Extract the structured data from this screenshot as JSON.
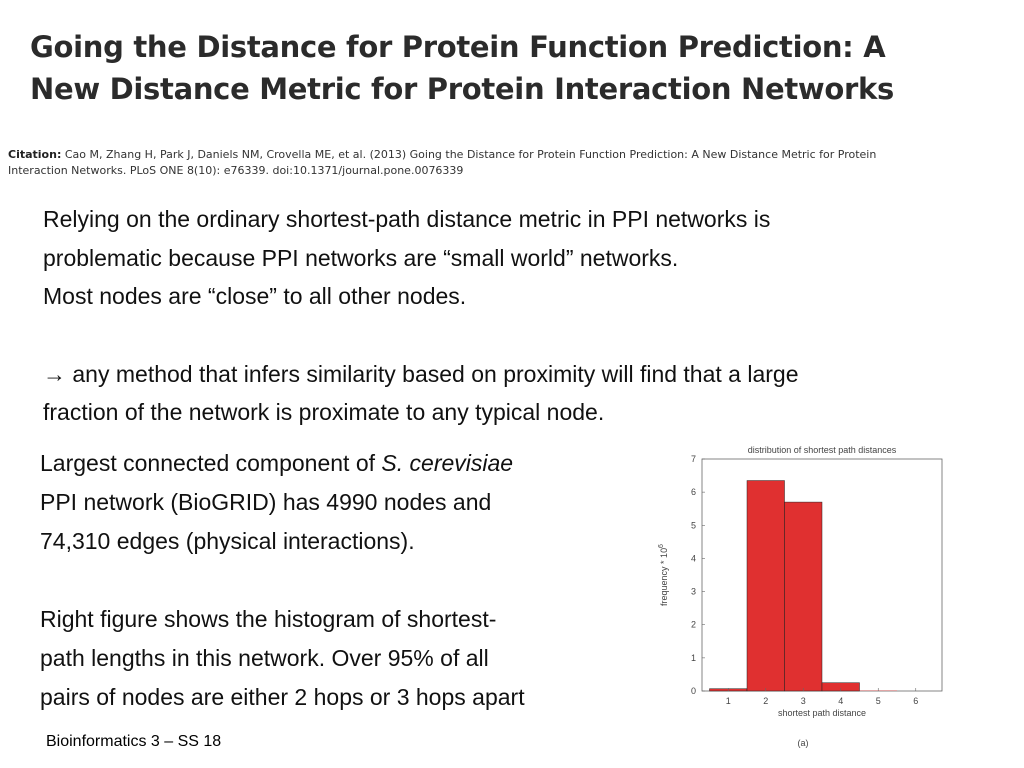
{
  "slide": {
    "title_lines": [
      "Going the Distance for Protein Function Prediction: A",
      "New Distance Metric for Protein Interaction Networks"
    ],
    "citation_label": "Citation:",
    "citation_line1": "Cao M, Zhang H, Park J, Daniels NM, Crovella ME, et al. (2013) Going the Distance for Protein Function Prediction: A New Distance Metric for Protein",
    "citation_line2": "Interaction Networks. PLoS ONE 8(10): e76339. doi:10.1371/journal.pone.0076339",
    "paragraph1": [
      "Relying on the ordinary shortest-path distance metric in PPI networks is",
      "problematic because PPI networks are “small world” networks.",
      "Most nodes are “close” to all other nodes."
    ],
    "arrow_symbol": "→",
    "paragraph2": [
      " any method that infers similarity based on proximity will find that a large",
      "fraction of the network is proximate to any typical node."
    ],
    "left_block_1": {
      "line1_prefix": "Largest connected component of ",
      "line1_species": "S. cerevisiae",
      "line2": "PPI network (BioGRID) has 4990 nodes and",
      "line3": "74,310 edges (physical interactions)."
    },
    "left_block_2": [
      "Right figure shows the histogram of shortest-",
      "path lengths in this network. Over 95% of all",
      "pairs of nodes are either 2 hops or 3 hops apart"
    ],
    "footer": "Bioinformatics 3 – SS 18"
  },
  "chart_data": {
    "type": "bar",
    "title": "distribution of shortest path distances",
    "xlabel": "shortest path distance",
    "ylabel": "frequency * 10",
    "ylabel_exponent": "6",
    "panel_label": "(a)",
    "categories": [
      "1",
      "2",
      "3",
      "4",
      "5",
      "6"
    ],
    "values": [
      0.07,
      6.35,
      5.7,
      0.25,
      0.01,
      0.0
    ],
    "ylim": [
      0,
      7
    ],
    "yticks": [
      "0",
      "1",
      "2",
      "3",
      "4",
      "5",
      "6",
      "7"
    ],
    "bar_color": "#e03030"
  }
}
